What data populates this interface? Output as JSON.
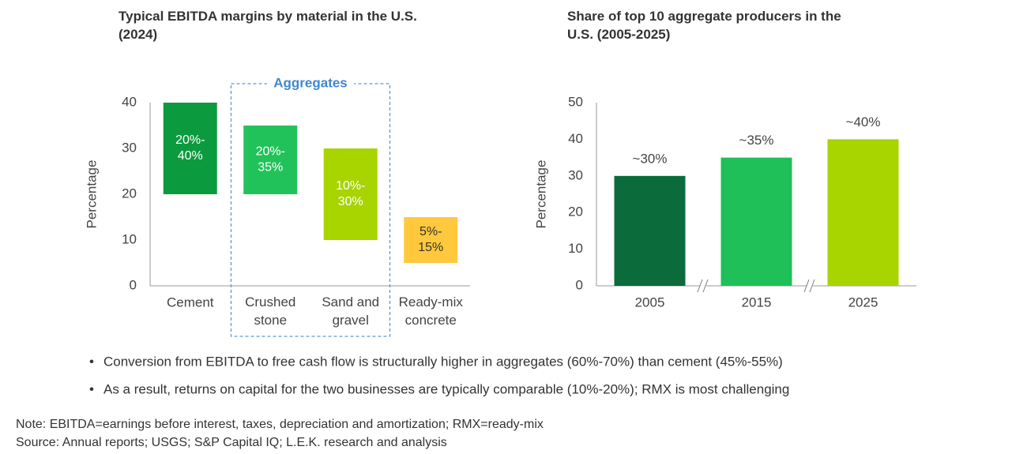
{
  "chart_data": [
    {
      "type": "floating_bar",
      "title": "Typical EBITDA margins by material in the U.S.\n(2024)",
      "y_label": "Percentage",
      "categories": [
        "Cement",
        "Crushed\nstone",
        "Sand and\ngravel",
        "Ready-mix\nconcrete"
      ],
      "low": [
        20,
        20,
        10,
        5
      ],
      "high": [
        40,
        35,
        30,
        15
      ],
      "value_labels": [
        "20%-\n40%",
        "20%-\n35%",
        "10%-\n30%",
        "5%-\n15%"
      ],
      "colors": [
        "#0c9a3f",
        "#22c25a",
        "#a8d400",
        "#ffc83d"
      ],
      "annotation": "Aggregates",
      "ylim": [
        0,
        40
      ],
      "yticks": [
        0,
        10,
        20,
        30,
        40
      ]
    },
    {
      "type": "bar",
      "title": "Share of top 10 aggregate producers in the\nU.S. (2005-2025)",
      "y_label": "Percentage",
      "categories": [
        "2005",
        "2015",
        "2025"
      ],
      "values": [
        30,
        35,
        40
      ],
      "value_labels": [
        "~30%",
        "~35%",
        "~40%"
      ],
      "colors": [
        "#0b6b3a",
        "#1fc057",
        "#a8d400"
      ],
      "axis_break": true,
      "ylim": [
        0,
        50
      ],
      "yticks": [
        0,
        10,
        20,
        30,
        40,
        50
      ]
    }
  ],
  "bullets": [
    "Conversion from EBITDA to free cash flow is structurally higher in aggregates (60%-70%) than cement (45%-55%)",
    "As a result, returns on capital for the two businesses are typically comparable (10%-20%); RMX is most challenging"
  ],
  "note": "Note: EBITDA=earnings before interest, taxes, depreciation and amortization; RMX=ready-mix",
  "source": "Source: Annual reports; USGS; S&P Capital IQ; L.E.K. research and analysis"
}
